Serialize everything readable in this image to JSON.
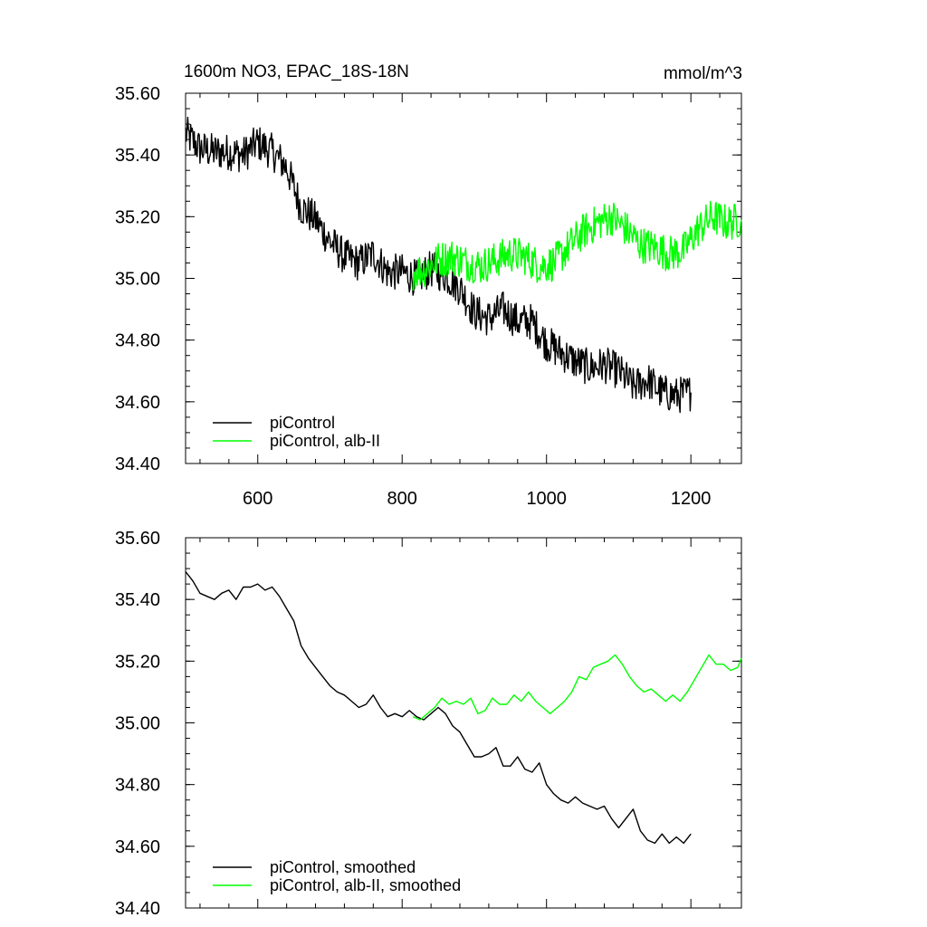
{
  "chart_data": [
    {
      "type": "line",
      "title": "1600m NO3, EPAC_18S-18N",
      "units": "mmol/m^3",
      "xlim": [
        500,
        1270
      ],
      "ylim": [
        34.4,
        35.6
      ],
      "x_ticks": [
        600,
        800,
        1000,
        1200
      ],
      "y_ticks": [
        34.4,
        34.6,
        34.8,
        35.0,
        35.2,
        35.4,
        35.6
      ],
      "x_tick_labels": [
        "600",
        "800",
        "1000",
        "1200"
      ],
      "y_tick_labels": [
        "34.40",
        "34.60",
        "34.80",
        "35.00",
        "35.20",
        "35.40",
        "35.60"
      ],
      "legend_position": "bottom-left",
      "grid": false,
      "series": [
        {
          "name": "piControl",
          "color": "#000000",
          "x": [
            500,
            520,
            540,
            560,
            580,
            600,
            620,
            640,
            660,
            680,
            700,
            720,
            740,
            760,
            780,
            800,
            820,
            840,
            860,
            880,
            900,
            920,
            940,
            960,
            980,
            1000,
            1020,
            1040,
            1060,
            1080,
            1100,
            1120,
            1140,
            1160,
            1180,
            1200
          ],
          "y": [
            35.47,
            35.42,
            35.41,
            35.41,
            35.4,
            35.44,
            35.41,
            35.36,
            35.23,
            35.19,
            35.12,
            35.07,
            35.05,
            35.08,
            35.02,
            35.02,
            35.0,
            35.03,
            35.01,
            34.97,
            34.89,
            34.87,
            34.9,
            34.86,
            34.86,
            34.79,
            34.76,
            34.73,
            34.71,
            34.72,
            34.7,
            34.65,
            34.67,
            34.63,
            34.62,
            34.63
          ],
          "noise": 0.06
        },
        {
          "name": "piControl, alb-II",
          "color": "#00ff00",
          "x": [
            815,
            830,
            850,
            870,
            890,
            910,
            930,
            950,
            970,
            990,
            1010,
            1030,
            1050,
            1070,
            1090,
            1110,
            1130,
            1150,
            1170,
            1190,
            1210,
            1230,
            1250,
            1270
          ],
          "y": [
            35.02,
            35.03,
            35.06,
            35.07,
            35.05,
            35.04,
            35.06,
            35.08,
            35.07,
            35.04,
            35.05,
            35.1,
            35.15,
            35.18,
            35.2,
            35.16,
            35.11,
            35.1,
            35.08,
            35.09,
            35.16,
            35.2,
            35.18,
            35.19
          ],
          "noise": 0.06
        }
      ]
    },
    {
      "type": "line",
      "xlim": [
        500,
        1270
      ],
      "ylim": [
        34.4,
        35.6
      ],
      "x_ticks": [
        600,
        800,
        1000,
        1200
      ],
      "y_ticks": [
        34.4,
        34.6,
        34.8,
        35.0,
        35.2,
        35.4,
        35.6
      ],
      "y_tick_labels": [
        "34.40",
        "34.60",
        "34.80",
        "35.00",
        "35.20",
        "35.40",
        "35.60"
      ],
      "legend_position": "bottom-left",
      "grid": false,
      "series": [
        {
          "name": "piControl, smoothed",
          "color": "#000000",
          "x": [
            500,
            510,
            520,
            530,
            540,
            550,
            560,
            570,
            580,
            590,
            600,
            610,
            620,
            630,
            640,
            650,
            660,
            670,
            680,
            690,
            700,
            710,
            720,
            730,
            740,
            750,
            760,
            770,
            780,
            790,
            800,
            810,
            820,
            830,
            840,
            850,
            860,
            870,
            880,
            890,
            900,
            910,
            920,
            930,
            940,
            950,
            960,
            970,
            980,
            990,
            1000,
            1010,
            1020,
            1030,
            1040,
            1050,
            1060,
            1070,
            1080,
            1090,
            1100,
            1110,
            1120,
            1130,
            1140,
            1150,
            1160,
            1170,
            1180,
            1190,
            1200
          ],
          "y": [
            35.49,
            35.46,
            35.42,
            35.41,
            35.4,
            35.42,
            35.43,
            35.4,
            35.44,
            35.44,
            35.45,
            35.43,
            35.44,
            35.41,
            35.37,
            35.33,
            35.25,
            35.21,
            35.18,
            35.15,
            35.12,
            35.1,
            35.09,
            35.07,
            35.05,
            35.06,
            35.09,
            35.05,
            35.02,
            35.03,
            35.02,
            35.04,
            35.02,
            35.01,
            35.03,
            35.05,
            35.03,
            34.99,
            34.97,
            34.93,
            34.89,
            34.89,
            34.9,
            34.92,
            34.86,
            34.86,
            34.89,
            34.85,
            34.84,
            34.87,
            34.8,
            34.77,
            34.75,
            34.74,
            34.76,
            34.74,
            34.73,
            34.72,
            34.73,
            34.69,
            34.66,
            34.69,
            34.72,
            34.65,
            34.62,
            34.61,
            34.64,
            34.61,
            34.63,
            34.61,
            34.64
          ]
        },
        {
          "name": "piControl, alb-II, smoothed",
          "color": "#00ff00",
          "x": [
            815,
            825,
            835,
            845,
            855,
            865,
            875,
            885,
            895,
            905,
            915,
            925,
            935,
            945,
            955,
            965,
            975,
            985,
            995,
            1005,
            1015,
            1025,
            1035,
            1045,
            1055,
            1065,
            1075,
            1085,
            1095,
            1105,
            1115,
            1125,
            1135,
            1145,
            1155,
            1165,
            1175,
            1185,
            1195,
            1205,
            1215,
            1225,
            1235,
            1245,
            1255,
            1265,
            1270
          ],
          "y": [
            35.02,
            35.01,
            35.03,
            35.05,
            35.08,
            35.06,
            35.07,
            35.06,
            35.08,
            35.03,
            35.04,
            35.08,
            35.06,
            35.06,
            35.09,
            35.07,
            35.1,
            35.07,
            35.05,
            35.03,
            35.05,
            35.07,
            35.1,
            35.15,
            35.14,
            35.18,
            35.19,
            35.2,
            35.22,
            35.19,
            35.15,
            35.12,
            35.1,
            35.11,
            35.09,
            35.07,
            35.09,
            35.07,
            35.1,
            35.14,
            35.18,
            35.22,
            35.19,
            35.19,
            35.17,
            35.18,
            35.21
          ]
        }
      ]
    }
  ]
}
